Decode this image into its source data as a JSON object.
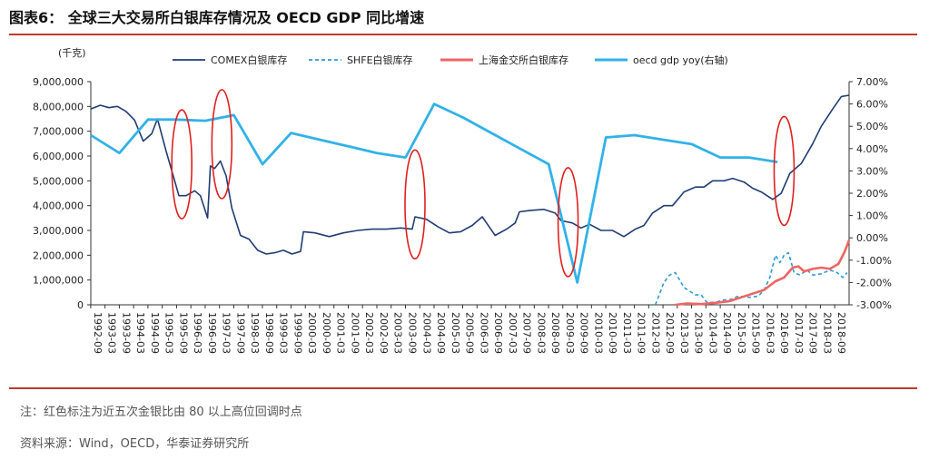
{
  "figure": {
    "title": "图表6：  全球三大交易所白银库存情况及 OECD GDP 同比增速",
    "note": "注：红色标注为近五次金银比由 80 以上高位回调时点",
    "source": "资料来源：Wind，OECD，华泰证券研究所"
  },
  "colors": {
    "comex": "#1f3d73",
    "shfe": "#2e9ad6",
    "sge": "#f06464",
    "oecd": "#31b2e8",
    "ellipse": "#e02020",
    "rule": "#c0392b"
  },
  "chart_data": {
    "type": "line",
    "title": "全球三大交易所白银库存情况及 OECD GDP 同比增速",
    "ylabel_left": "(千克)",
    "ylim_left": [
      0,
      9000000
    ],
    "yticks_left": [
      "0",
      "1,000,000",
      "2,000,000",
      "3,000,000",
      "4,000,000",
      "5,000,000",
      "6,000,000",
      "7,000,000",
      "8,000,000",
      "9,000,000"
    ],
    "ylim_right": [
      -3.0,
      7.0
    ],
    "yticks_right": [
      "-3.00%",
      "-2.00%",
      "-1.00%",
      "0.00%",
      "1.00%",
      "2.00%",
      "3.00%",
      "4.00%",
      "5.00%",
      "6.00%",
      "7.00%"
    ],
    "x_range": [
      1992.67,
      2019.17
    ],
    "xticks": [
      "1992-09",
      "1993-03",
      "1993-09",
      "1994-03",
      "1994-09",
      "1995-03",
      "1995-09",
      "1996-03",
      "1996-09",
      "1997-03",
      "1997-09",
      "1998-03",
      "1998-09",
      "1999-03",
      "1999-09",
      "2000-03",
      "2000-09",
      "2001-03",
      "2001-09",
      "2002-03",
      "2002-09",
      "2003-03",
      "2003-09",
      "2004-03",
      "2004-09",
      "2005-03",
      "2005-09",
      "2006-03",
      "2006-09",
      "2007-03",
      "2007-09",
      "2008-03",
      "2008-09",
      "2009-03",
      "2009-09",
      "2010-03",
      "2010-09",
      "2011-03",
      "2011-09",
      "2012-03",
      "2012-09",
      "2013-03",
      "2013-09",
      "2014-03",
      "2014-09",
      "2015-03",
      "2015-09",
      "2016-03",
      "2016-09",
      "2017-03",
      "2017-09",
      "2018-03",
      "2018-09"
    ],
    "legend_position": "top",
    "series": [
      {
        "name": "COMEX白银库存",
        "axis": "left",
        "style": "solid",
        "points": [
          [
            1992.67,
            7900000
          ],
          [
            1993.0,
            8050000
          ],
          [
            1993.3,
            7950000
          ],
          [
            1993.6,
            8000000
          ],
          [
            1993.9,
            7800000
          ],
          [
            1994.2,
            7450000
          ],
          [
            1994.5,
            6600000
          ],
          [
            1994.8,
            6900000
          ],
          [
            1995.0,
            7500000
          ],
          [
            1995.3,
            6200000
          ],
          [
            1995.5,
            5400000
          ],
          [
            1995.75,
            4400000
          ],
          [
            1996.0,
            4400000
          ],
          [
            1996.3,
            4600000
          ],
          [
            1996.5,
            4400000
          ],
          [
            1996.75,
            3500000
          ],
          [
            1996.85,
            5600000
          ],
          [
            1997.0,
            5500000
          ],
          [
            1997.2,
            5800000
          ],
          [
            1997.4,
            5200000
          ],
          [
            1997.6,
            3900000
          ],
          [
            1997.9,
            2800000
          ],
          [
            1998.2,
            2650000
          ],
          [
            1998.5,
            2200000
          ],
          [
            1998.8,
            2050000
          ],
          [
            1999.1,
            2100000
          ],
          [
            1999.4,
            2200000
          ],
          [
            1999.7,
            2050000
          ],
          [
            2000.0,
            2150000
          ],
          [
            2000.1,
            2950000
          ],
          [
            2000.5,
            2900000
          ],
          [
            2001.0,
            2750000
          ],
          [
            2001.5,
            2900000
          ],
          [
            2002.0,
            3000000
          ],
          [
            2002.5,
            3050000
          ],
          [
            2003.0,
            3050000
          ],
          [
            2003.5,
            3100000
          ],
          [
            2003.9,
            3050000
          ],
          [
            2004.0,
            3550000
          ],
          [
            2004.4,
            3450000
          ],
          [
            2004.8,
            3150000
          ],
          [
            2005.2,
            2900000
          ],
          [
            2005.6,
            2950000
          ],
          [
            2006.0,
            3200000
          ],
          [
            2006.35,
            3550000
          ],
          [
            2006.5,
            3300000
          ],
          [
            2006.8,
            2800000
          ],
          [
            2007.2,
            3050000
          ],
          [
            2007.5,
            3300000
          ],
          [
            2007.65,
            3750000
          ],
          [
            2008.0,
            3800000
          ],
          [
            2008.5,
            3850000
          ],
          [
            2008.9,
            3700000
          ],
          [
            2009.1,
            3400000
          ],
          [
            2009.5,
            3300000
          ],
          [
            2009.8,
            3100000
          ],
          [
            2010.1,
            3250000
          ],
          [
            2010.5,
            3000000
          ],
          [
            2010.9,
            3000000
          ],
          [
            2011.3,
            2750000
          ],
          [
            2011.7,
            3050000
          ],
          [
            2012.0,
            3200000
          ],
          [
            2012.3,
            3700000
          ],
          [
            2012.7,
            4000000
          ],
          [
            2013.0,
            4000000
          ],
          [
            2013.4,
            4550000
          ],
          [
            2013.8,
            4750000
          ],
          [
            2014.1,
            4750000
          ],
          [
            2014.4,
            5000000
          ],
          [
            2014.8,
            5000000
          ],
          [
            2015.1,
            5100000
          ],
          [
            2015.5,
            4950000
          ],
          [
            2015.8,
            4700000
          ],
          [
            2016.1,
            4550000
          ],
          [
            2016.5,
            4250000
          ],
          [
            2016.8,
            4500000
          ],
          [
            2017.1,
            5300000
          ],
          [
            2017.5,
            5700000
          ],
          [
            2017.9,
            6500000
          ],
          [
            2018.2,
            7200000
          ],
          [
            2018.6,
            7900000
          ],
          [
            2018.9,
            8400000
          ],
          [
            2019.17,
            8450000
          ]
        ]
      },
      {
        "name": "SHFE白银库存",
        "axis": "left",
        "style": "dashed",
        "points": [
          [
            2012.4,
            0
          ],
          [
            2012.7,
            900000
          ],
          [
            2012.9,
            1200000
          ],
          [
            2013.1,
            1300000
          ],
          [
            2013.4,
            700000
          ],
          [
            2013.8,
            400000
          ],
          [
            2014.0,
            400000
          ],
          [
            2014.2,
            100000
          ],
          [
            2014.5,
            100000
          ],
          [
            2014.8,
            200000
          ],
          [
            2015.0,
            200000
          ],
          [
            2015.3,
            350000
          ],
          [
            2015.7,
            300000
          ],
          [
            2016.0,
            350000
          ],
          [
            2016.2,
            600000
          ],
          [
            2016.4,
            1100000
          ],
          [
            2016.6,
            2000000
          ],
          [
            2016.75,
            1700000
          ],
          [
            2016.9,
            2000000
          ],
          [
            2017.05,
            2100000
          ],
          [
            2017.25,
            1300000
          ],
          [
            2017.45,
            1200000
          ],
          [
            2017.7,
            1400000
          ],
          [
            2017.9,
            1200000
          ],
          [
            2018.2,
            1250000
          ],
          [
            2018.5,
            1400000
          ],
          [
            2018.75,
            1300000
          ],
          [
            2018.95,
            1100000
          ],
          [
            2019.1,
            1300000
          ]
        ]
      },
      {
        "name": "上海金交所白银库存",
        "axis": "left",
        "style": "solid",
        "points": [
          [
            2013.1,
            0
          ],
          [
            2013.5,
            50000
          ],
          [
            2014.0,
            30000
          ],
          [
            2014.5,
            80000
          ],
          [
            2015.0,
            150000
          ],
          [
            2015.4,
            300000
          ],
          [
            2015.8,
            450000
          ],
          [
            2016.2,
            600000
          ],
          [
            2016.6,
            950000
          ],
          [
            2016.9,
            1100000
          ],
          [
            2017.2,
            1500000
          ],
          [
            2017.4,
            1550000
          ],
          [
            2017.6,
            1350000
          ],
          [
            2017.9,
            1450000
          ],
          [
            2018.2,
            1500000
          ],
          [
            2018.5,
            1450000
          ],
          [
            2018.8,
            1650000
          ],
          [
            2019.0,
            2100000
          ],
          [
            2019.17,
            2600000
          ]
        ]
      },
      {
        "name": "oecd gdp yoy(右轴)",
        "axis": "right",
        "style": "solid",
        "points": [
          [
            1992.67,
            4.6
          ],
          [
            1993.67,
            3.8
          ],
          [
            1994.67,
            5.3
          ],
          [
            1995.67,
            5.3
          ],
          [
            1996.67,
            5.25
          ],
          [
            1997.67,
            5.5
          ],
          [
            1998.67,
            3.3
          ],
          [
            1999.67,
            4.7
          ],
          [
            2000.67,
            4.4
          ],
          [
            2001.67,
            4.1
          ],
          [
            2002.67,
            3.8
          ],
          [
            2003.67,
            3.6
          ],
          [
            2004.67,
            6.0
          ],
          [
            2005.67,
            5.4
          ],
          [
            2006.67,
            4.7
          ],
          [
            2007.67,
            4.0
          ],
          [
            2008.67,
            3.3
          ],
          [
            2009.67,
            -2.0
          ],
          [
            2010.67,
            4.5
          ],
          [
            2011.67,
            4.6
          ],
          [
            2012.67,
            4.4
          ],
          [
            2013.67,
            4.2
          ],
          [
            2014.67,
            3.6
          ],
          [
            2015.67,
            3.6
          ],
          [
            2016.67,
            3.4
          ]
        ]
      }
    ],
    "annotations": [
      {
        "type": "ellipse",
        "x": 1995.85,
        "y_right": 3.3
      },
      {
        "type": "ellipse",
        "x": 1997.25,
        "y_right": 4.2
      },
      {
        "type": "ellipse",
        "x": 2004.0,
        "y_right": 1.5
      },
      {
        "type": "ellipse",
        "x": 2009.35,
        "y_right": 0.7
      },
      {
        "type": "ellipse",
        "x": 2016.9,
        "y_right": 3.0
      }
    ]
  }
}
